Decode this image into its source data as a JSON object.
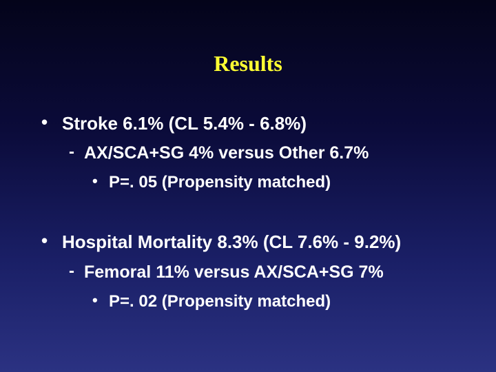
{
  "slide": {
    "title": "Results",
    "colors": {
      "title": "#ffff33",
      "text": "#ffffff",
      "background_top": "#04041a",
      "background_bottom": "#2b3282"
    },
    "sections": [
      {
        "bullet": "•",
        "text": "Stroke 6.1% (CL 5.4% - 6.8%)",
        "sub": {
          "marker": "-",
          "text": "AX/SCA+SG 4% versus Other 6.7%",
          "sub": {
            "bullet": "•",
            "text": "P=. 05 (Propensity matched)"
          }
        }
      },
      {
        "bullet": "•",
        "text": "Hospital Mortality 8.3% (CL 7.6% - 9.2%)",
        "sub": {
          "marker": "-",
          "text": "Femoral 11% versus  AX/SCA+SG 7%",
          "sub": {
            "bullet": "•",
            "text": "P=. 02 (Propensity matched)"
          }
        }
      }
    ]
  }
}
